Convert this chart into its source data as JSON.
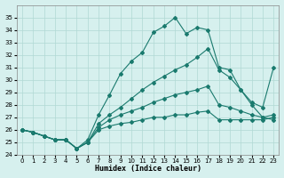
{
  "xlabel": "Humidex (Indice chaleur)",
  "background_color": "#d6f0ee",
  "grid_color": "#b0d8d4",
  "line_color": "#1a7a6e",
  "xlim": [
    -0.5,
    23.5
  ],
  "ylim": [
    24,
    36
  ],
  "xticks": [
    0,
    1,
    2,
    3,
    4,
    5,
    6,
    7,
    8,
    9,
    10,
    11,
    12,
    13,
    14,
    15,
    16,
    17,
    18,
    19,
    20,
    21,
    22,
    23
  ],
  "yticks": [
    24,
    25,
    26,
    27,
    28,
    29,
    30,
    31,
    32,
    33,
    34,
    35
  ],
  "series": [
    [
      26.0,
      25.8,
      25.5,
      25.2,
      25.2,
      24.5,
      25.2,
      27.2,
      28.8,
      30.5,
      31.5,
      32.2,
      33.8,
      34.3,
      35.0,
      33.7,
      34.2,
      34.0,
      31.0,
      30.8,
      29.2,
      28.0,
      27.0,
      26.8
    ],
    [
      26.0,
      25.8,
      25.5,
      25.2,
      25.2,
      24.5,
      25.0,
      26.5,
      27.2,
      27.8,
      28.5,
      29.2,
      29.8,
      30.3,
      30.8,
      31.2,
      31.8,
      32.5,
      30.8,
      30.2,
      29.2,
      28.2,
      27.8,
      31.0
    ],
    [
      26.0,
      25.8,
      25.5,
      25.2,
      25.2,
      24.5,
      25.0,
      26.2,
      26.8,
      27.2,
      27.5,
      27.8,
      28.2,
      28.5,
      28.8,
      29.0,
      29.2,
      29.5,
      28.0,
      27.8,
      27.5,
      27.2,
      27.0,
      27.2
    ],
    [
      26.0,
      25.8,
      25.5,
      25.2,
      25.2,
      24.5,
      25.0,
      26.0,
      26.3,
      26.5,
      26.6,
      26.8,
      27.0,
      27.0,
      27.2,
      27.2,
      27.4,
      27.5,
      26.8,
      26.8,
      26.8,
      26.8,
      26.8,
      27.0
    ]
  ]
}
